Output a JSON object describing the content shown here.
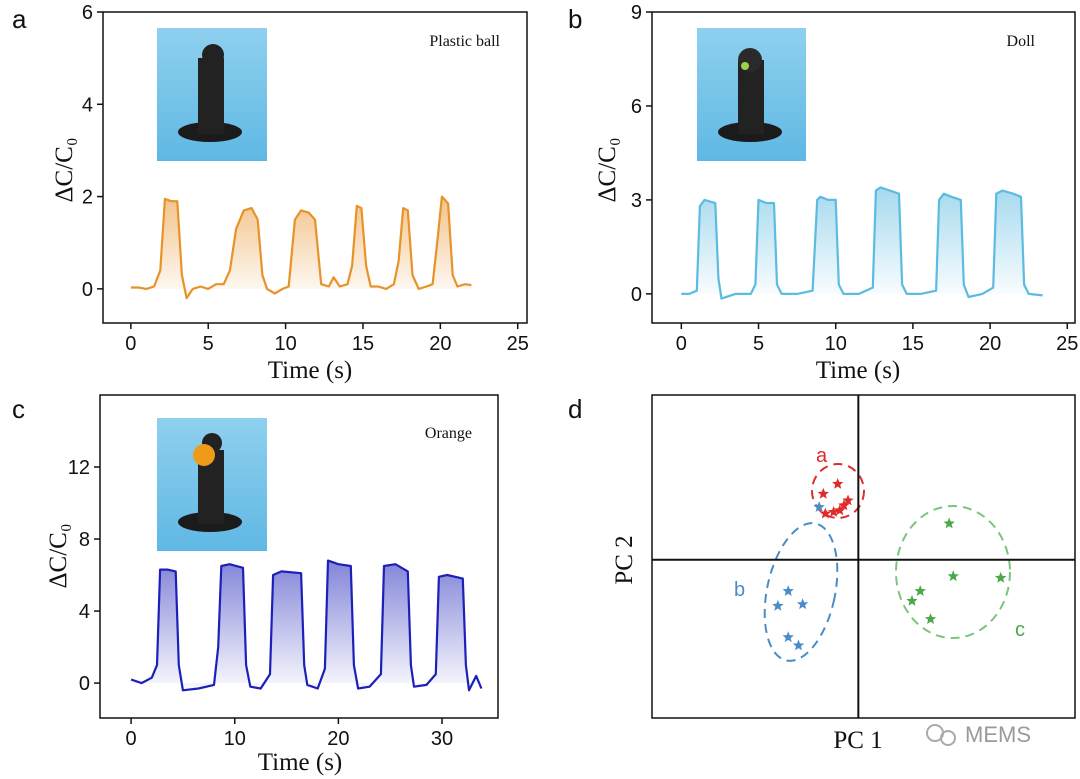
{
  "chart_data": [
    {
      "type": "line",
      "panel": "a",
      "annotation": "Plastic ball",
      "xlabel": "Time (s)",
      "ylabel": "ΔC/C₀",
      "xlim": [
        -1.8,
        25.6
      ],
      "ylim": [
        -0.74,
        6
      ],
      "xticks": [
        0,
        5,
        10,
        15,
        20,
        25
      ],
      "yticks": [
        0,
        2,
        4,
        6
      ],
      "series": [
        {
          "color": "#e8922a",
          "x": [
            0,
            0.5,
            1,
            1.5,
            1.9,
            2.2,
            2.6,
            3.0,
            3.3,
            3.6,
            4.0,
            4.5,
            5,
            5.5,
            6.0,
            6.4,
            6.8,
            7.3,
            7.8,
            8.2,
            8.5,
            8.8,
            9.3,
            9.8,
            10.2,
            10.6,
            11.0,
            11.5,
            11.9,
            12.3,
            12.8,
            13.1,
            13.5,
            14.0,
            14.3,
            14.6,
            14.9,
            15.2,
            15.5,
            16,
            16.5,
            17.0,
            17.3,
            17.6,
            17.9,
            18.2,
            18.6,
            19.1,
            19.5,
            19.8,
            20.1,
            20.5,
            20.8,
            21.1,
            21.6,
            22.0
          ],
          "values": [
            0.03,
            0.03,
            0.0,
            0.05,
            0.4,
            1.95,
            1.9,
            1.9,
            0.3,
            -0.2,
            0.0,
            0.05,
            0.0,
            0.1,
            0.1,
            0.4,
            1.3,
            1.7,
            1.75,
            1.5,
            0.3,
            0.0,
            -0.1,
            0.0,
            0.05,
            1.5,
            1.7,
            1.65,
            1.5,
            0.1,
            0.05,
            0.25,
            0.05,
            0.1,
            0.5,
            1.8,
            1.75,
            0.5,
            0.05,
            0.05,
            0.0,
            0.1,
            0.6,
            1.75,
            1.7,
            0.3,
            0.0,
            0.05,
            0.1,
            1.0,
            2.0,
            1.85,
            0.3,
            0.05,
            0.1,
            0.08
          ]
        }
      ]
    },
    {
      "type": "line",
      "panel": "b",
      "annotation": "Doll",
      "xlabel": "Time (s)",
      "ylabel": "ΔC/C₀",
      "xlim": [
        -1.9,
        25.5
      ],
      "ylim": [
        -0.93,
        9
      ],
      "xticks": [
        0,
        5,
        10,
        15,
        20,
        25
      ],
      "yticks": [
        0,
        3,
        6,
        9
      ],
      "series": [
        {
          "color": "#5bbbe0",
          "x": [
            0,
            0.5,
            1.0,
            1.2,
            1.5,
            2.2,
            2.4,
            2.6,
            3.5,
            4.5,
            4.8,
            5.0,
            5.5,
            6.0,
            6.2,
            6.5,
            7.5,
            8.5,
            8.8,
            9.0,
            9.5,
            10.0,
            10.2,
            10.5,
            11.5,
            12.4,
            12.6,
            12.9,
            13.5,
            14.1,
            14.3,
            14.6,
            15.5,
            16.5,
            16.7,
            17.0,
            17.5,
            18.1,
            18.3,
            18.6,
            19.5,
            20.2,
            20.4,
            20.8,
            21.5,
            22.0,
            22.2,
            22.5,
            23.4
          ],
          "values": [
            0,
            0,
            0.1,
            2.8,
            3.0,
            2.9,
            0.5,
            -0.15,
            0.0,
            0.0,
            0.3,
            3.0,
            2.9,
            2.9,
            0.3,
            0.0,
            0.0,
            0.1,
            3.0,
            3.1,
            3.0,
            3.0,
            0.3,
            0.0,
            0.0,
            0.2,
            3.3,
            3.4,
            3.3,
            3.2,
            0.3,
            0.0,
            0.0,
            0.1,
            3.0,
            3.2,
            3.1,
            3.0,
            0.3,
            -0.1,
            0.0,
            0.2,
            3.2,
            3.3,
            3.2,
            3.1,
            0.3,
            0.0,
            -0.05
          ]
        }
      ]
    },
    {
      "type": "line",
      "panel": "c",
      "annotation": "Orange",
      "xlabel": "Time (s)",
      "ylabel": "ΔC/C₀",
      "xlim": [
        -3,
        35.4
      ],
      "ylim": [
        -1.94,
        16
      ],
      "xticks": [
        0,
        10,
        20,
        30
      ],
      "yticks": [
        0,
        4,
        8,
        12
      ],
      "series": [
        {
          "color": "#1c20b8",
          "x": [
            0,
            1,
            2,
            2.5,
            2.8,
            3.5,
            4.3,
            4.6,
            5.0,
            6.5,
            8.0,
            8.4,
            8.7,
            9.5,
            10.8,
            11.1,
            11.5,
            12.5,
            13.4,
            13.7,
            14.5,
            16.4,
            16.7,
            17.0,
            18.0,
            18.7,
            19.0,
            20.0,
            21.2,
            21.5,
            21.9,
            23.0,
            24.1,
            24.4,
            25.5,
            26.7,
            27.0,
            27.3,
            28.5,
            29.4,
            29.7,
            30.5,
            32.0,
            32.3,
            32.6,
            33.3,
            33.8
          ],
          "values": [
            0.2,
            0.0,
            0.3,
            1.0,
            6.3,
            6.3,
            6.2,
            1.0,
            -0.4,
            -0.3,
            -0.1,
            2.0,
            6.5,
            6.6,
            6.4,
            1.0,
            -0.2,
            -0.3,
            0.5,
            6.0,
            6.2,
            6.1,
            1.0,
            -0.1,
            -0.3,
            0.8,
            6.8,
            6.6,
            6.5,
            1.0,
            -0.3,
            -0.2,
            0.5,
            6.5,
            6.6,
            6.2,
            1.0,
            -0.2,
            -0.1,
            0.5,
            5.9,
            6.0,
            5.8,
            1.0,
            -0.4,
            0.4,
            -0.3
          ]
        }
      ]
    },
    {
      "type": "scatter",
      "panel": "d",
      "xlabel": "PC 1",
      "ylabel": "PC 2",
      "xlim": [
        -1,
        1.05
      ],
      "ylim": [
        -0.96,
        1
      ],
      "series": [
        {
          "name": "a",
          "color": "#e02b2b",
          "x": [
            -0.17,
            -0.1,
            -0.05,
            -0.07,
            -0.12,
            -0.16,
            -0.09
          ],
          "values": [
            0.4,
            0.46,
            0.36,
            0.33,
            0.29,
            0.28,
            0.3
          ]
        },
        {
          "name": "b",
          "color": "#4a8cc8",
          "x": [
            -0.34,
            -0.27,
            -0.39,
            -0.34,
            -0.29,
            -0.19
          ],
          "values": [
            -0.19,
            -0.27,
            -0.28,
            -0.47,
            -0.52,
            0.32
          ]
        },
        {
          "name": "c",
          "color": "#4aa84a",
          "x": [
            0.44,
            0.46,
            0.69,
            0.3,
            0.26,
            0.35
          ],
          "values": [
            0.22,
            -0.1,
            -0.11,
            -0.19,
            -0.25,
            -0.36
          ]
        }
      ]
    }
  ],
  "watermark": "MEMS"
}
